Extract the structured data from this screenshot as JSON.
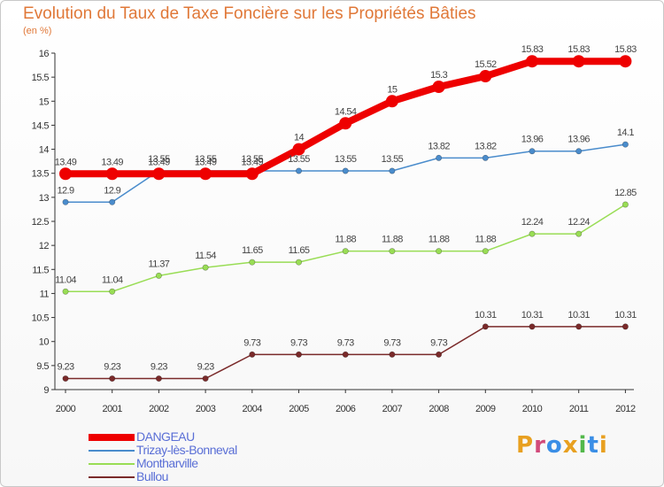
{
  "page": {
    "title": "Evolution du Taux de Taxe Foncière sur les Propriétés Bâties",
    "unit": "(en %)"
  },
  "chart_data": {
    "type": "line",
    "title": "Evolution du Taux de Taxe Foncière sur les Propriétés Bâties",
    "ylabel": "(en %)",
    "xlabel": "",
    "x": [
      "2000",
      "2001",
      "2002",
      "2003",
      "2004",
      "2005",
      "2006",
      "2007",
      "2008",
      "2009",
      "2010",
      "2011",
      "2012"
    ],
    "ylim": [
      9,
      16
    ],
    "yticks": [
      "9",
      "9.5",
      "10",
      "10.5",
      "11",
      "11.5",
      "12",
      "12.5",
      "13",
      "13.5",
      "14",
      "14.5",
      "15",
      "15.5",
      "16"
    ],
    "grid": false,
    "legend": "bottom-left",
    "series": [
      {
        "name": "DANGEAU",
        "color": "#ee0000",
        "values": [
          13.49,
          13.49,
          13.49,
          13.49,
          13.49,
          14,
          14.54,
          15,
          15.3,
          15.52,
          15.83,
          15.83,
          15.83
        ],
        "labels": [
          "13.49",
          "13.49",
          "13.49",
          "13.49",
          "13.49",
          "14",
          "14.54",
          "15",
          "15.3",
          "15.52",
          "15.83",
          "15.83",
          "15.83"
        ]
      },
      {
        "name": "Trizay-lès-Bonneval",
        "color": "#4a8ccc",
        "values": [
          12.9,
          12.9,
          13.55,
          13.55,
          13.55,
          13.55,
          13.55,
          13.55,
          13.82,
          13.82,
          13.96,
          13.96,
          14.1
        ],
        "labels": [
          "12.9",
          "12.9",
          "13.55",
          "13.55",
          "13.55",
          "13.55",
          "13.55",
          "13.55",
          "13.82",
          "13.82",
          "13.96",
          "13.96",
          "14.1"
        ]
      },
      {
        "name": "Montharville",
        "color": "#99dd55",
        "values": [
          11.04,
          11.04,
          11.37,
          11.54,
          11.65,
          11.65,
          11.88,
          11.88,
          11.88,
          11.88,
          12.24,
          12.24,
          12.85
        ],
        "labels": [
          "11.04",
          "11.04",
          "11.37",
          "11.54",
          "11.65",
          "11.65",
          "11.88",
          "11.88",
          "11.88",
          "11.88",
          "12.24",
          "12.24",
          "12.85"
        ]
      },
      {
        "name": "Bullou",
        "color": "#7a2a2a",
        "values": [
          9.23,
          9.23,
          9.23,
          9.23,
          9.73,
          9.73,
          9.73,
          9.73,
          9.73,
          10.31,
          10.31,
          10.31,
          10.31
        ],
        "labels": [
          "9.23",
          "9.23",
          "9.23",
          "9.23",
          "9.73",
          "9.73",
          "9.73",
          "9.73",
          "9.73",
          "10.31",
          "10.31",
          "10.31",
          "10.31"
        ]
      }
    ]
  },
  "logo": {
    "text": "Proxiti",
    "colors": [
      "#e8a020",
      "#d24a7a",
      "#3a8ee6",
      "#e8a020",
      "#52b84a",
      "#3a8ee6",
      "#e8a020"
    ]
  }
}
